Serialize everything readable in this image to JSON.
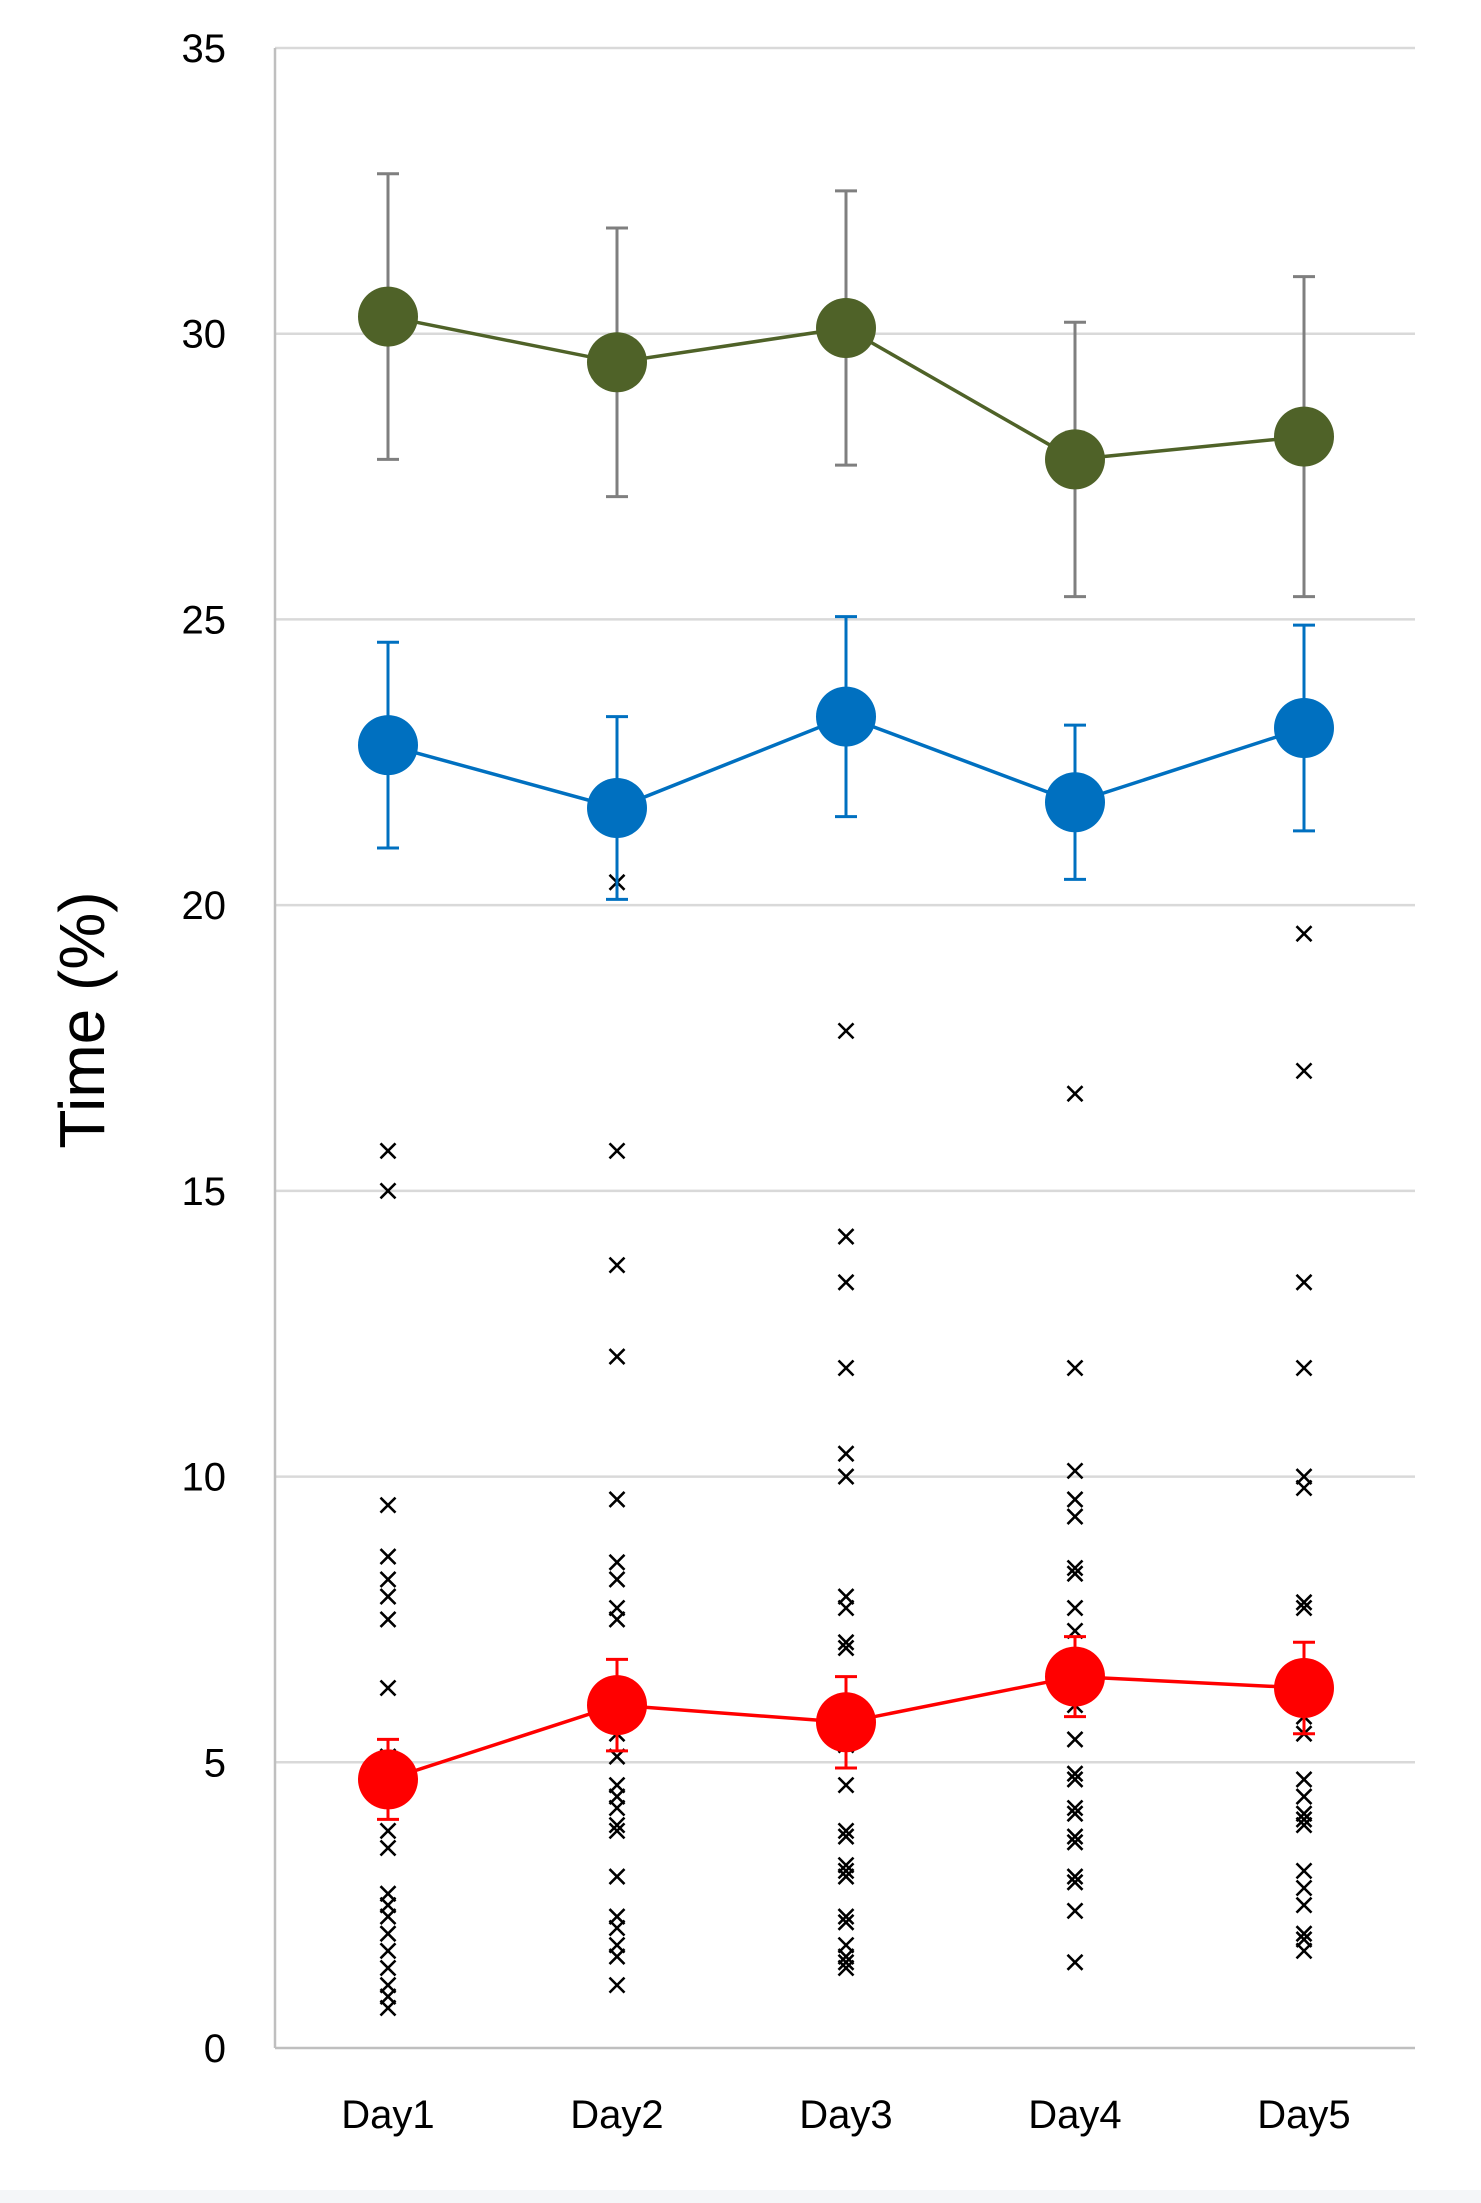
{
  "chart_data": {
    "type": "line",
    "title": "",
    "xlabel": "",
    "ylabel": "Time (%)",
    "ylim": [
      0,
      35
    ],
    "yticks": [
      0,
      5,
      10,
      15,
      20,
      25,
      30,
      35
    ],
    "categories": [
      "Day1",
      "Day2",
      "Day3",
      "Day4",
      "Day5"
    ],
    "grid": true,
    "series": [
      {
        "name": "green",
        "color": "#4f6228",
        "errcolor": "#7f7f7f",
        "values": [
          30.3,
          29.5,
          30.1,
          27.8,
          28.2
        ],
        "errors": [
          2.5,
          2.35,
          2.4,
          2.4,
          2.8
        ]
      },
      {
        "name": "blue",
        "color": "#0070c0",
        "errcolor": "#0070c0",
        "values": [
          22.8,
          21.7,
          23.3,
          21.8,
          23.1
        ],
        "errors": [
          1.8,
          1.6,
          1.75,
          1.35,
          1.8
        ]
      },
      {
        "name": "red",
        "color": "#ff0000",
        "errcolor": "#ff0000",
        "values": [
          4.7,
          6.0,
          5.7,
          6.5,
          6.3
        ],
        "errors": [
          0.7,
          0.8,
          0.8,
          0.7,
          0.8
        ]
      }
    ],
    "scatter": {
      "marker": "x",
      "color": "#000000",
      "points": [
        [
          [
            15.7,
            15.0,
            9.5,
            8.6,
            8.2,
            7.9,
            7.5,
            6.3,
            5.1,
            4.9,
            4.6,
            3.8,
            3.5,
            2.7,
            2.5,
            2.3,
            2.0,
            1.7,
            1.4,
            1.1,
            0.9,
            0.7
          ]
        ],
        [
          [
            20.4,
            15.7,
            13.7,
            12.1,
            9.6,
            8.5,
            8.2,
            7.7,
            7.5,
            5.5,
            5.1,
            4.6,
            4.4,
            4.2,
            3.9,
            3.8,
            3.0,
            2.3,
            2.1,
            1.8,
            1.6,
            1.1
          ]
        ],
        [
          [
            17.8,
            14.2,
            13.4,
            11.9,
            10.4,
            10.0,
            7.9,
            7.7,
            7.1,
            7.0,
            5.6,
            5.3,
            4.6,
            3.8,
            3.7,
            3.2,
            3.1,
            3.0,
            2.3,
            2.2,
            1.8,
            1.6,
            1.5,
            1.4
          ]
        ],
        [
          [
            22.1,
            16.7,
            11.9,
            10.1,
            9.6,
            9.3,
            8.4,
            8.3,
            7.7,
            7.3,
            6.0,
            5.4,
            4.8,
            4.7,
            4.2,
            4.1,
            3.7,
            3.6,
            3.0,
            2.9,
            2.4,
            1.5
          ]
        ],
        [
          [
            19.5,
            17.1,
            13.4,
            11.9,
            10.0,
            9.8,
            7.8,
            7.7,
            6.5,
            6.2,
            5.8,
            5.5,
            4.7,
            4.4,
            4.1,
            4.0,
            3.9,
            3.1,
            2.8,
            2.5,
            2.0,
            1.9,
            1.7
          ]
        ]
      ]
    }
  }
}
